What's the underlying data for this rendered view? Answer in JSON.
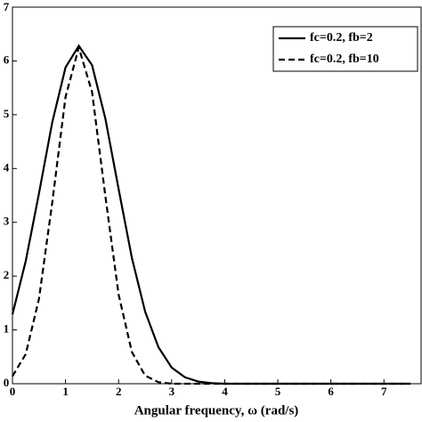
{
  "chart_data": {
    "type": "line",
    "x_label": "Angular frequency, ω (rad/s)",
    "x": [
      0,
      0.25,
      0.5,
      0.75,
      1,
      1.25,
      1.5,
      1.75,
      2,
      2.25,
      2.5,
      2.75,
      3,
      3.25,
      3.5,
      3.75,
      4,
      4.25,
      4.5,
      4.75,
      5,
      5.25,
      5.5,
      5.75,
      6,
      6.25,
      6.5,
      6.75,
      7,
      7.25,
      7.5
    ],
    "series": [
      {
        "name": "fc=0.2, fb=2",
        "color": "#000000",
        "dash": "solid",
        "values": [
          1.29,
          2.28,
          3.54,
          4.86,
          5.88,
          6.28,
          5.92,
          4.93,
          3.62,
          2.34,
          1.34,
          0.68,
          0.3,
          0.12,
          0.04,
          0.01,
          0,
          0,
          0,
          0,
          0,
          0,
          0,
          0,
          0,
          0,
          0,
          0,
          0,
          0,
          0
        ]
      },
      {
        "name": "fc=0.2, fb=10",
        "color": "#000000",
        "dash": "dashed",
        "values": [
          0.14,
          0.55,
          1.58,
          3.37,
          5.33,
          6.25,
          5.42,
          3.49,
          1.66,
          0.59,
          0.15,
          0.03,
          0,
          0,
          0,
          0,
          0,
          0,
          0,
          0,
          0,
          0,
          0,
          0,
          0,
          0,
          0,
          0,
          0,
          0,
          0
        ]
      }
    ],
    "xlim": [
      0,
      7.7
    ],
    "xticks": [
      0,
      1,
      2,
      3,
      4,
      5,
      6,
      7
    ],
    "ylim": [
      0,
      7
    ],
    "yticks": [
      0,
      1,
      2,
      3,
      4,
      5,
      6,
      7
    ],
    "legend": "upper right",
    "grid": false
  }
}
